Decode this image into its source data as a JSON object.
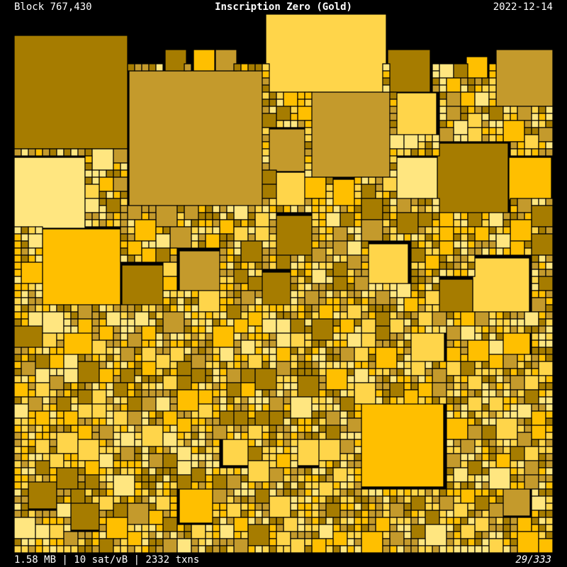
{
  "header": {
    "block": "Block 767,430",
    "title": "Inscription Zero (Gold)",
    "date": "2022-12-14"
  },
  "footer": {
    "stats": "1.58 MB | 10 sat/vB | 2332 txns",
    "edition": "29/333"
  }
}
